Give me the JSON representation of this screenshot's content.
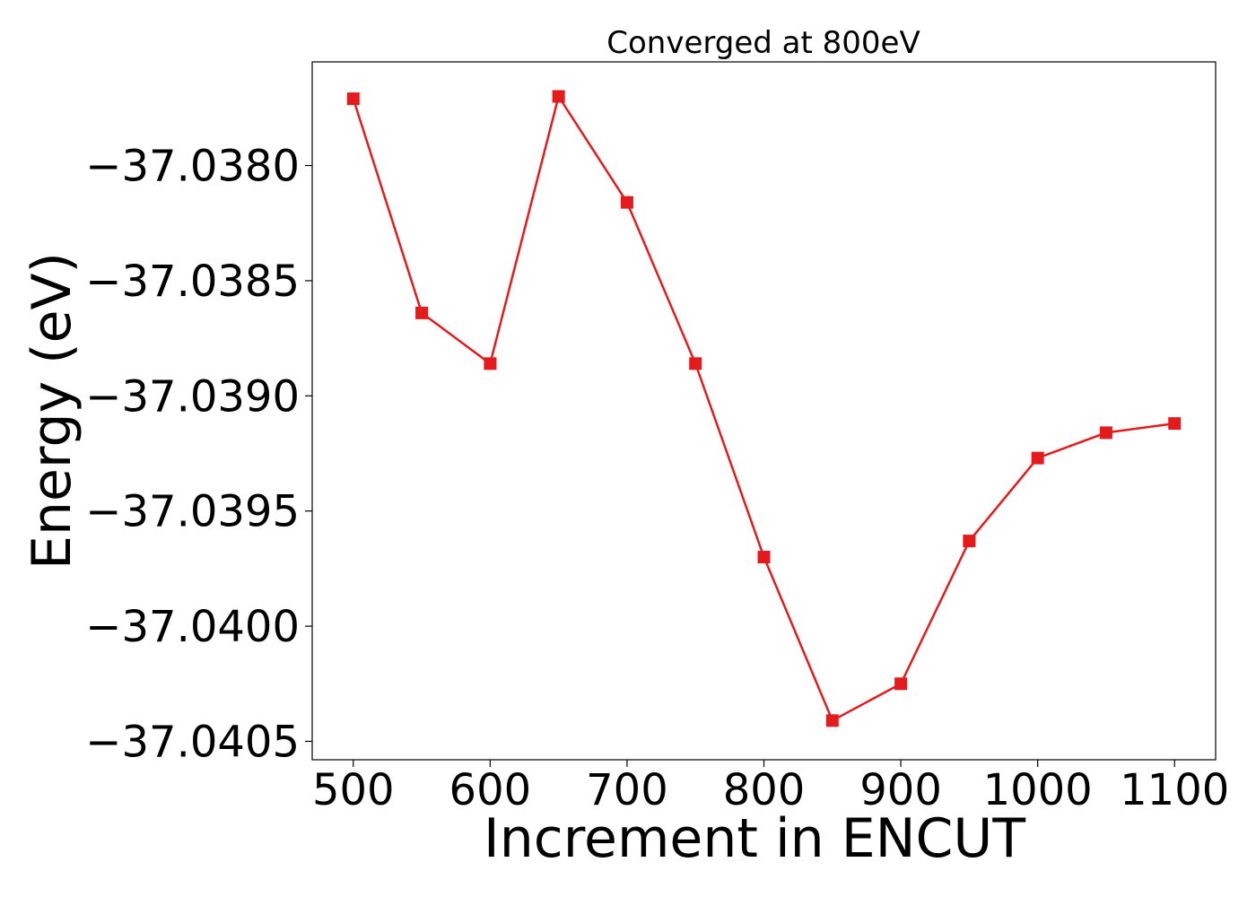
{
  "chart_data": {
    "type": "line",
    "title": "Converged at 800eV",
    "xlabel": "Increment in ENCUT",
    "ylabel": "Energy (eV)",
    "x": [
      500,
      550,
      600,
      650,
      700,
      750,
      800,
      850,
      900,
      950,
      1000,
      1050,
      1100
    ],
    "series": [
      {
        "values": [
          -37.03771,
          -37.03864,
          -37.03886,
          -37.0377,
          -37.03816,
          -37.03886,
          -37.0397,
          -37.04041,
          -37.04025,
          -37.03963,
          -37.03927,
          -37.03916,
          -37.03912
        ]
      }
    ],
    "xlim": [
      470,
      1130
    ],
    "ylim": [
      -37.04058,
      -37.03755
    ],
    "xticks": [
      500,
      600,
      700,
      800,
      900,
      1000,
      1100
    ],
    "xtick_labels": [
      "500",
      "600",
      "700",
      "800",
      "900",
      "1000",
      "1100"
    ],
    "yticks": [
      -37.038,
      -37.0385,
      -37.039,
      -37.0395,
      -37.04,
      -37.0405
    ],
    "ytick_labels": [
      "−37.0380",
      "−37.0385",
      "−37.0390",
      "−37.0395",
      "−37.0400",
      "−37.0405"
    ],
    "line_color": "#e41a1c",
    "marker": "square",
    "grid": false
  }
}
